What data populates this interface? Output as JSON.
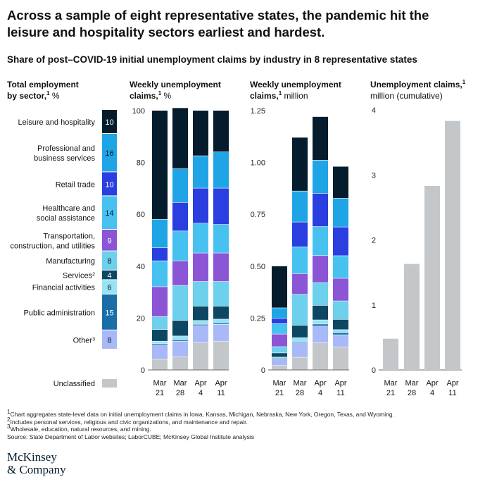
{
  "headline": "Across a sample of eight representative states, the pandemic hit the leisure and hospitality sectors earliest and hardest.",
  "subtitle": "Share of post–COVID-19 initial unemployment claims by industry in 8 representative states",
  "panels": {
    "employment": {
      "title_bold": "Total employment",
      "title_bold2": "by sector,",
      "sup": "1",
      "rest": " %"
    },
    "weekly_pct": {
      "title_bold": "Weekly unemployment",
      "title_bold2": "claims,",
      "sup": "1",
      "rest": " %"
    },
    "weekly_mil": {
      "title_bold": "Weekly unemployment",
      "title_bold2": "claims,",
      "sup": "1",
      "rest": " million"
    },
    "cumulative": {
      "title_bold": "Unemployment claims,",
      "sup": "1",
      "title_line2": "million (cumulative)"
    }
  },
  "colors": {
    "leisure": "#051c2c",
    "professional": "#1fa5e6",
    "retail": "#2b3ee0",
    "healthcare": "#47c2f0",
    "transportation": "#8b55d6",
    "manufacturing": "#6dd0ec",
    "services": "#0e4764",
    "financial": "#98e2f4",
    "public": "#1a6ea8",
    "other": "#a8b9f7",
    "unclassified": "#c4c7ca",
    "axis": "#666666"
  },
  "chart_data": [
    {
      "type": "bar",
      "title": "Total employment by sector, %",
      "categories": [
        "Leisure and hospitality",
        "Professional and business services",
        "Retail trade",
        "Healthcare and social assistance",
        "Transportation, construction, and utilities",
        "Manufacturing",
        "Services",
        "Financial activities",
        "Public administration",
        "Other",
        "Unclassified"
      ],
      "category_lines": [
        [
          "Leisure and hospitality"
        ],
        [
          "Professional and",
          "business services"
        ],
        [
          "Retail trade"
        ],
        [
          "Healthcare and",
          "social assistance"
        ],
        [
          "Transportation,",
          "construction, and utilities"
        ],
        [
          "Manufacturing"
        ],
        [
          "Services"
        ],
        [
          "Financial activities"
        ],
        [
          "Public administration"
        ],
        [
          "Other"
        ],
        [
          "Unclassified"
        ]
      ],
      "category_sups": [
        "",
        "",
        "",
        "",
        "",
        "",
        "2",
        "",
        "",
        "3",
        ""
      ],
      "keys": [
        "leisure",
        "professional",
        "retail",
        "healthcare",
        "transportation",
        "manufacturing",
        "services",
        "financial",
        "public",
        "other",
        "unclassified"
      ],
      "values": [
        10,
        16,
        10,
        14,
        9,
        8,
        4,
        6,
        15,
        8,
        0
      ]
    },
    {
      "type": "bar",
      "stacked": true,
      "title": "Weekly unemployment claims, %",
      "categories": [
        "Mar 21",
        "Mar 28",
        "Apr 4",
        "Apr 11"
      ],
      "ylim": [
        0,
        100
      ],
      "yticks": [
        0,
        20,
        40,
        60,
        80,
        100
      ],
      "series": [
        {
          "key": "unclassified",
          "values": [
            4,
            5,
            10.5,
            11
          ]
        },
        {
          "key": "other",
          "values": [
            5.5,
            6,
            6.5,
            6.5
          ]
        },
        {
          "key": "public",
          "values": [
            0.5,
            0.5,
            0.5,
            0.5
          ]
        },
        {
          "key": "financial",
          "values": [
            1,
            1.5,
            1.5,
            1.5
          ]
        },
        {
          "key": "services",
          "values": [
            4.5,
            6,
            5.5,
            5
          ]
        },
        {
          "key": "manufacturing",
          "values": [
            5,
            13.5,
            9.5,
            9.5
          ]
        },
        {
          "key": "transportation",
          "values": [
            11.5,
            9.5,
            11,
            11
          ]
        },
        {
          "key": "healthcare",
          "values": [
            10,
            11.5,
            11.5,
            11
          ]
        },
        {
          "key": "retail",
          "values": [
            5,
            11,
            13.5,
            14
          ]
        },
        {
          "key": "professional",
          "values": [
            11,
            13,
            12.5,
            14
          ]
        },
        {
          "key": "leisure",
          "values": [
            42,
            23.5,
            17.5,
            16
          ]
        }
      ]
    },
    {
      "type": "bar",
      "stacked": true,
      "title": "Weekly unemployment claims, million",
      "categories": [
        "Mar 21",
        "Mar 28",
        "Apr 4",
        "Apr 11"
      ],
      "ylim": [
        0,
        1.25
      ],
      "yticks": [
        0,
        0.25,
        0.5,
        0.75,
        1.0,
        1.25
      ],
      "ytick_labels": [
        "0",
        "0.25",
        "0.50",
        "0.75",
        "1.00",
        "1.25"
      ],
      "totals": [
        0.5,
        1.12,
        1.22,
        0.98
      ],
      "series": [
        {
          "key": "unclassified",
          "values": [
            0.02,
            0.06,
            0.13,
            0.11
          ]
        },
        {
          "key": "other",
          "values": [
            0.03,
            0.07,
            0.08,
            0.06
          ]
        },
        {
          "key": "public",
          "values": [
            0.005,
            0.005,
            0.01,
            0.01
          ]
        },
        {
          "key": "financial",
          "values": [
            0.005,
            0.02,
            0.02,
            0.015
          ]
        },
        {
          "key": "services",
          "values": [
            0.02,
            0.06,
            0.07,
            0.05
          ]
        },
        {
          "key": "manufacturing",
          "values": [
            0.03,
            0.15,
            0.11,
            0.09
          ]
        },
        {
          "key": "transportation",
          "values": [
            0.06,
            0.1,
            0.13,
            0.11
          ]
        },
        {
          "key": "healthcare",
          "values": [
            0.05,
            0.13,
            0.14,
            0.11
          ]
        },
        {
          "key": "retail",
          "values": [
            0.025,
            0.12,
            0.16,
            0.14
          ]
        },
        {
          "key": "professional",
          "values": [
            0.05,
            0.15,
            0.16,
            0.14
          ]
        },
        {
          "key": "leisure",
          "values": [
            0.2,
            0.26,
            0.21,
            0.155
          ]
        }
      ]
    },
    {
      "type": "bar",
      "title": "Unemployment claims, million (cumulative)",
      "categories": [
        "Mar 21",
        "Mar 28",
        "Apr 4",
        "Apr 11"
      ],
      "ylim": [
        0,
        4
      ],
      "yticks": [
        0,
        1,
        2,
        3,
        4
      ],
      "values": [
        0.48,
        1.63,
        2.83,
        3.83
      ]
    }
  ],
  "footnotes": [
    {
      "sup": "1",
      "text": "Chart aggregates state-level data on initial unemployment claims in Iowa, Kansas, Michigan, Nebraska, New York, Oregon, Texas, and Wyoming."
    },
    {
      "sup": "2",
      "text": "Includes personal services, religious and civic organizations, and maintenance and repair."
    },
    {
      "sup": "3",
      "text": "Wholesale, education, natural resources, and mining."
    },
    {
      "sup": "",
      "text": "Source: State Department of Labor websites; LaborCUBE; McKinsey Global Institute analysis"
    }
  ],
  "logo": {
    "line1": "McKinsey",
    "line2": "& Company"
  }
}
